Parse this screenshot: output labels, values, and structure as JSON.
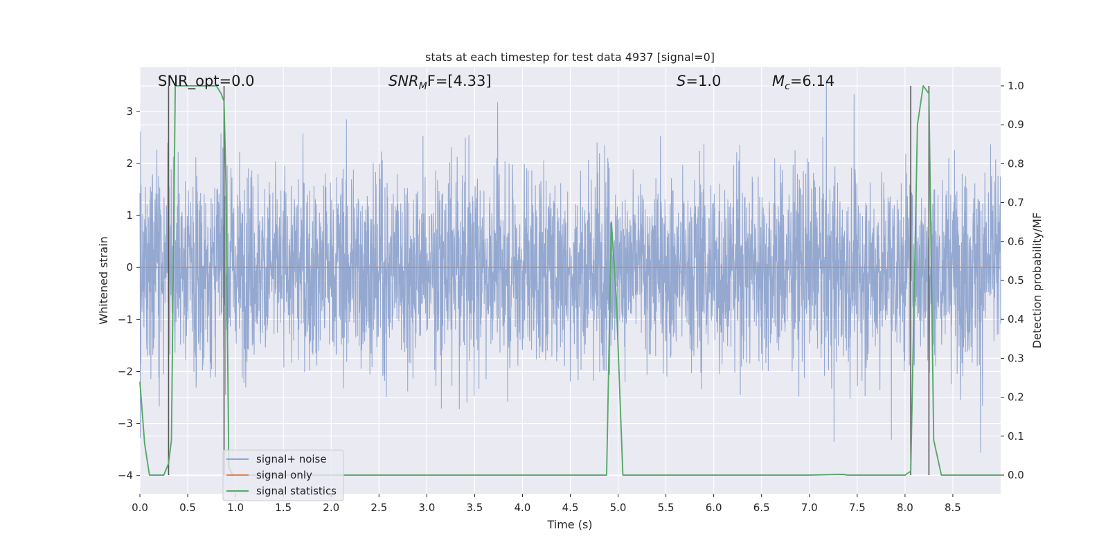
{
  "chart_data": {
    "type": "line",
    "title": "stats at each timestep for test data 4937 [signal=0]",
    "xlabel": "Time (s)",
    "ylabel": "Whitened strain",
    "y2label": "Detection probability/MF",
    "xlim": [
      0.0,
      9.0
    ],
    "ylim": [
      -4.35,
      3.85
    ],
    "y2lim": [
      -0.048,
      1.048
    ],
    "xticks": [
      "0.0",
      "0.5",
      "1.0",
      "1.5",
      "2.0",
      "2.5",
      "3.0",
      "3.5",
      "4.0",
      "4.5",
      "5.0",
      "5.5",
      "6.0",
      "6.5",
      "7.0",
      "7.5",
      "8.0",
      "8.5"
    ],
    "yticks": [
      "3",
      "2",
      "1",
      "0",
      "−1",
      "−2",
      "−3",
      "−4"
    ],
    "y2ticks": [
      "1.0",
      "0.9",
      "0.8",
      "0.7",
      "0.6",
      "0.5",
      "0.4",
      "0.3",
      "0.2",
      "0.1",
      "0.0"
    ],
    "annotations": {
      "snr_opt": "SNR_opt=0.0",
      "snr_mf_main": "SNR",
      "snr_mf_sub": "M",
      "snr_mf_tail": "F=[4.33]",
      "s_main": "S",
      "s_tail": "=1.0",
      "mc_main": "M",
      "mc_sub": "c",
      "mc_tail": "=6.14"
    },
    "legend": {
      "position": "lower-left",
      "entries": [
        "signal+ noise",
        "signal only",
        "signal statistics"
      ]
    },
    "colors": {
      "noise": "#8fa4cd",
      "signal_only": "#dd8452",
      "statistics": "#55a868",
      "vlines": "#555555",
      "axes_bg": "#eaeaf2",
      "grid": "#ffffff"
    },
    "series": [
      {
        "name": "signal+ noise",
        "axis": "left",
        "style": "dense noise, amplitude about ±2, peaks to about ±3.5"
      },
      {
        "name": "signal only",
        "axis": "left",
        "x": [
          0.0,
          9.0
        ],
        "values": [
          0.0,
          0.0
        ]
      },
      {
        "name": "signal statistics",
        "axis": "right",
        "x": [
          0.0,
          0.05,
          0.1,
          0.2,
          0.25,
          0.3,
          0.33,
          0.37,
          0.4,
          0.5,
          0.6,
          0.7,
          0.8,
          0.85,
          0.88,
          0.9,
          0.93,
          0.97,
          1.0,
          1.5,
          2.0,
          2.5,
          3.0,
          3.5,
          4.0,
          4.5,
          4.6,
          4.7,
          4.8,
          4.88,
          4.93,
          4.98,
          5.05,
          5.1,
          5.5,
          6.0,
          6.5,
          7.0,
          7.35,
          7.4,
          7.5,
          8.0,
          8.06,
          8.13,
          8.19,
          8.25,
          8.3,
          8.38,
          8.5,
          9.0
        ],
        "values": [
          0.24,
          0.08,
          0.0,
          0.0,
          0.0,
          0.03,
          0.09,
          1.0,
          1.0,
          1.0,
          1.0,
          1.0,
          1.0,
          0.98,
          0.96,
          0.75,
          0.02,
          0.0,
          0.0,
          0.0,
          0.0,
          0.0,
          0.0,
          0.0,
          0.0,
          0.0,
          0.0,
          0.0,
          0.0,
          0.0,
          0.65,
          0.46,
          0.0,
          0.0,
          0.0,
          0.0,
          0.0,
          0.0,
          0.002,
          0.0,
          0.0,
          0.0,
          0.01,
          0.9,
          1.0,
          0.98,
          0.09,
          0.0,
          0.0,
          0.0
        ]
      }
    ],
    "vertical_lines_x": [
      0.3,
      0.88,
      8.06,
      8.25
    ]
  }
}
